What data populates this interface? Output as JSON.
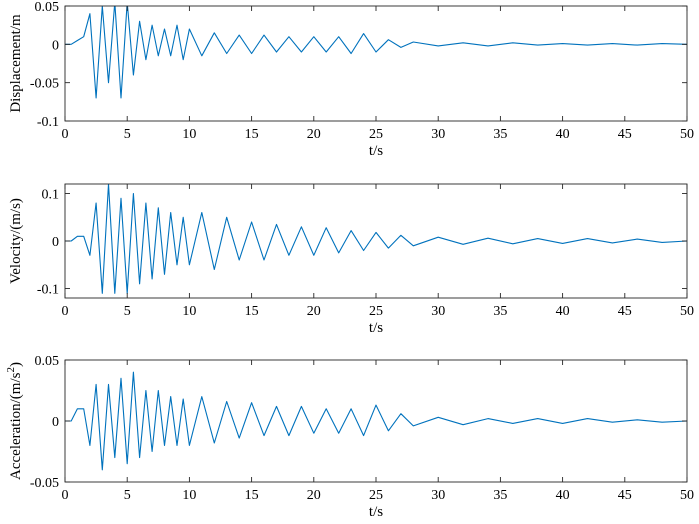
{
  "chart_data": [
    {
      "type": "line",
      "xlabel": "t/s",
      "ylabel": "Displacement/m",
      "xlim": [
        0,
        50
      ],
      "ylim": [
        -0.1,
        0.05
      ],
      "xticks": [
        0,
        5,
        10,
        15,
        20,
        25,
        30,
        35,
        40,
        45,
        50
      ],
      "yticks": [
        -0.1,
        -0.05,
        0,
        0.05
      ],
      "ytick_labels": [
        "-0.1",
        "-0.05",
        "0",
        "0.05"
      ],
      "line_color": "#0072BD",
      "series": [
        {
          "x": [
            0,
            0.5,
            1,
            1.5,
            2,
            2.5,
            3,
            3.5,
            4,
            4.5,
            5,
            5.5,
            6,
            6.5,
            7,
            7.5,
            8,
            8.5,
            9,
            9.5,
            10,
            11,
            12,
            13,
            14,
            15,
            16,
            17,
            18,
            19,
            20,
            21,
            22,
            23,
            24,
            25,
            26,
            27,
            28,
            30,
            32,
            34,
            36,
            38,
            40,
            42,
            44,
            46,
            48,
            50
          ],
          "values": [
            0,
            0,
            0.005,
            0.01,
            0.04,
            -0.07,
            0.05,
            -0.05,
            0.055,
            -0.07,
            0.055,
            -0.04,
            0.03,
            -0.02,
            0.025,
            -0.015,
            0.02,
            -0.015,
            0.025,
            -0.02,
            0.02,
            -0.015,
            0.015,
            -0.012,
            0.012,
            -0.012,
            0.012,
            -0.01,
            0.01,
            -0.01,
            0.01,
            -0.01,
            0.01,
            -0.012,
            0.014,
            -0.01,
            0.006,
            -0.004,
            0.003,
            -0.002,
            0.002,
            -0.002,
            0.002,
            -0.001,
            0.001,
            -0.001,
            0.001,
            -0.001,
            0.001,
            0
          ]
        }
      ]
    },
    {
      "type": "line",
      "xlabel": "t/s",
      "ylabel": "Velocity/(m/s)",
      "xlim": [
        0,
        50
      ],
      "ylim": [
        -0.12,
        0.12
      ],
      "xticks": [
        0,
        5,
        10,
        15,
        20,
        25,
        30,
        35,
        40,
        45,
        50
      ],
      "yticks": [
        -0.1,
        0,
        0.1
      ],
      "ytick_labels": [
        "-0.1",
        "0",
        "0.1"
      ],
      "line_color": "#0072BD",
      "series": [
        {
          "x": [
            0,
            0.5,
            1,
            1.5,
            2,
            2.5,
            3,
            3.5,
            4,
            4.5,
            5,
            5.5,
            6,
            6.5,
            7,
            7.5,
            8,
            8.5,
            9,
            9.5,
            10,
            11,
            12,
            13,
            14,
            15,
            16,
            17,
            18,
            19,
            20,
            21,
            22,
            23,
            24,
            25,
            26,
            27,
            28,
            30,
            32,
            34,
            36,
            38,
            40,
            42,
            44,
            46,
            48,
            50
          ],
          "values": [
            0,
            0,
            0.01,
            0.01,
            -0.03,
            0.08,
            -0.11,
            0.12,
            -0.11,
            0.09,
            -0.11,
            0.1,
            -0.09,
            0.08,
            -0.08,
            0.07,
            -0.07,
            0.06,
            -0.05,
            0.05,
            -0.05,
            0.06,
            -0.06,
            0.05,
            -0.04,
            0.04,
            -0.04,
            0.035,
            -0.03,
            0.03,
            -0.03,
            0.028,
            -0.025,
            0.022,
            -0.02,
            0.018,
            -0.015,
            0.012,
            -0.01,
            0.008,
            -0.007,
            0.006,
            -0.006,
            0.005,
            -0.005,
            0.005,
            -0.004,
            0.004,
            -0.003,
            0
          ]
        }
      ]
    },
    {
      "type": "line",
      "xlabel": "t/s",
      "ylabel": "Acceleration/(m/s",
      "ylabel_sup": "2",
      "ylabel_end": ")",
      "xlim": [
        0,
        50
      ],
      "ylim": [
        -0.05,
        0.05
      ],
      "xticks": [
        0,
        5,
        10,
        15,
        20,
        25,
        30,
        35,
        40,
        45,
        50
      ],
      "yticks": [
        -0.05,
        0,
        0.05
      ],
      "ytick_labels": [
        "-0.05",
        "0",
        "0.05"
      ],
      "line_color": "#0072BD",
      "series": [
        {
          "x": [
            0,
            0.5,
            1,
            1.5,
            2,
            2.5,
            3,
            3.5,
            4,
            4.5,
            5,
            5.5,
            6,
            6.5,
            7,
            7.5,
            8,
            8.5,
            9,
            9.5,
            10,
            11,
            12,
            13,
            14,
            15,
            16,
            17,
            18,
            19,
            20,
            21,
            22,
            23,
            24,
            25,
            26,
            27,
            28,
            30,
            32,
            34,
            36,
            38,
            40,
            42,
            44,
            46,
            48,
            50
          ],
          "values": [
            0,
            0,
            0.01,
            0.01,
            -0.02,
            0.03,
            -0.04,
            0.03,
            -0.03,
            0.035,
            -0.035,
            0.04,
            -0.03,
            0.025,
            -0.025,
            0.025,
            -0.02,
            0.02,
            -0.02,
            0.018,
            -0.02,
            0.02,
            -0.018,
            0.016,
            -0.014,
            0.015,
            -0.012,
            0.012,
            -0.012,
            0.012,
            -0.01,
            0.01,
            -0.01,
            0.01,
            -0.012,
            0.013,
            -0.008,
            0.006,
            -0.004,
            0.003,
            -0.003,
            0.002,
            -0.002,
            0.002,
            -0.002,
            0.002,
            -0.001,
            0.001,
            -0.001,
            0
          ]
        }
      ]
    }
  ]
}
